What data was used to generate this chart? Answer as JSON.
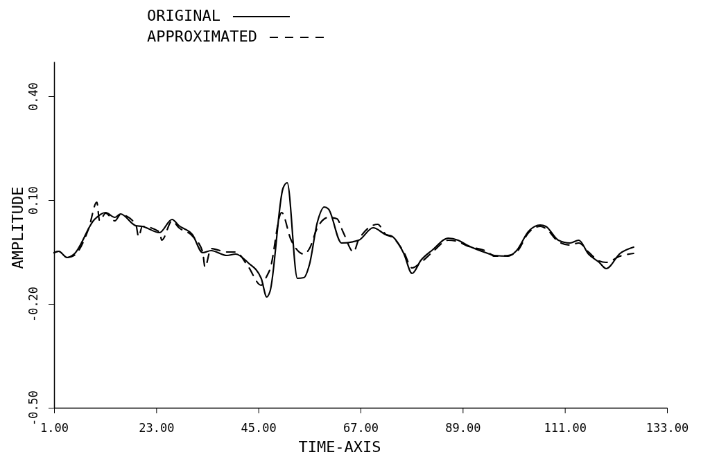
{
  "chart_data": {
    "type": "line",
    "xlabel": "TIME-AXIS",
    "ylabel": "AMPLITUDE",
    "legend": "top left",
    "grid": false,
    "marker": "none",
    "xlim": [
      1,
      133
    ],
    "ylim": [
      -0.5,
      0.5
    ],
    "xticks": [
      {
        "value": 1,
        "label": "1.00"
      },
      {
        "value": 23,
        "label": "23.00"
      },
      {
        "value": 45,
        "label": "45.00"
      },
      {
        "value": 67,
        "label": "67.00"
      },
      {
        "value": 89,
        "label": "89.00"
      },
      {
        "value": 111,
        "label": "111.00"
      },
      {
        "value": 133,
        "label": "133.00"
      }
    ],
    "yticks": [
      {
        "value": -0.5,
        "label": "-0.50"
      },
      {
        "value": -0.2,
        "label": "-0.20"
      },
      {
        "value": 0.1,
        "label": "0.10"
      },
      {
        "value": 0.4,
        "label": "0.40"
      }
    ],
    "series": [
      {
        "name": "ORIGINAL",
        "color": "#000000",
        "line_style": "solid",
        "x": [
          1,
          2,
          3.8,
          5.3,
          9.7,
          12.1,
          14.1,
          15.3,
          18.6,
          20,
          23.7,
          26.4,
          27.9,
          30.8,
          33,
          34.8,
          38.2,
          40.1,
          42.7,
          45.6,
          46.8,
          47.5,
          50.3,
          51.2,
          53.4,
          54.8,
          56,
          57.7,
          59.2,
          60.1,
          62.9,
          66.6,
          69.7,
          72.5,
          73.7,
          76.3,
          78.1,
          80,
          82.5,
          85.9,
          88,
          89.9,
          94.4,
          95.8,
          98.8,
          100.6,
          103.2,
          105.7,
          106.9,
          109.6,
          112.1,
          114,
          116.1,
          118.4,
          119.9,
          122.9,
          125.8
        ],
        "values": [
          -0.052,
          -0.048,
          -0.066,
          -0.056,
          0.044,
          0.064,
          0.05,
          0.06,
          0.026,
          0.024,
          0.006,
          0.044,
          0.026,
          0.0,
          -0.052,
          -0.046,
          -0.06,
          -0.056,
          -0.08,
          -0.126,
          -0.18,
          -0.164,
          0.134,
          0.15,
          -0.126,
          -0.124,
          -0.086,
          0.036,
          0.08,
          0.074,
          -0.024,
          -0.016,
          0.02,
          0.0,
          -0.004,
          -0.054,
          -0.112,
          -0.074,
          -0.044,
          -0.01,
          -0.016,
          -0.03,
          -0.054,
          -0.06,
          -0.062,
          -0.046,
          0.01,
          0.028,
          0.024,
          -0.016,
          -0.024,
          -0.016,
          -0.056,
          -0.08,
          -0.098,
          -0.054,
          -0.036
        ]
      },
      {
        "name": "APPROXIMATED",
        "color": "#000000",
        "line_style": "dashed",
        "x": [
          1,
          2,
          3.8,
          5.3,
          8.5,
          10.2,
          10.8,
          12.1,
          14.1,
          15.3,
          18.6,
          19.2,
          20,
          23.7,
          24.2,
          26.4,
          27.9,
          30.8,
          33,
          33.5,
          34.8,
          38.2,
          40.1,
          42.7,
          45.6,
          46.8,
          47.5,
          50,
          52,
          54.8,
          56,
          57.7,
          60.1,
          61.9,
          63.3,
          65.5,
          66.6,
          70.7,
          72.5,
          73.7,
          76.3,
          78.1,
          80,
          82.5,
          85.9,
          88,
          89.9,
          94.4,
          95.8,
          98.8,
          100.6,
          103.2,
          105.7,
          106.9,
          109.6,
          112.1,
          114,
          116.1,
          118.4,
          119.9,
          122.9,
          125.8
        ],
        "values": [
          -0.052,
          -0.048,
          -0.066,
          -0.06,
          0.02,
          0.094,
          0.04,
          0.062,
          0.04,
          0.058,
          0.03,
          -0.006,
          0.024,
          0.008,
          -0.016,
          0.04,
          0.02,
          -0.004,
          -0.05,
          -0.094,
          -0.04,
          -0.05,
          -0.05,
          -0.09,
          -0.146,
          -0.12,
          -0.1,
          0.064,
          -0.014,
          -0.056,
          -0.04,
          0.02,
          0.05,
          0.046,
          0.006,
          -0.05,
          -0.014,
          0.03,
          0.0,
          -0.006,
          -0.05,
          -0.096,
          -0.08,
          -0.05,
          -0.016,
          -0.02,
          -0.032,
          -0.05,
          -0.062,
          -0.06,
          -0.05,
          0.006,
          0.024,
          0.018,
          -0.02,
          -0.03,
          -0.024,
          -0.05,
          -0.076,
          -0.08,
          -0.062,
          -0.054
        ]
      }
    ]
  }
}
